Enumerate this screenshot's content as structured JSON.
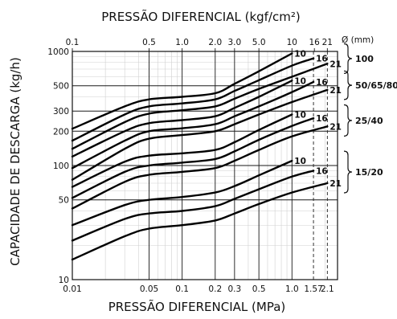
{
  "chart_data": {
    "type": "line",
    "title": "PRESSÃO DIFERENCIAL (kgf/cm²)",
    "xlabel": "PRESSÃO DIFERENCIAL (MPa)",
    "ylabel": "CAPACIDADE DE DESCARGA (kg/h)",
    "x_scale": "log",
    "y_scale": "log",
    "xlim": [
      0.01,
      2.6
    ],
    "ylim": [
      10,
      1000
    ],
    "grid": true,
    "x_ticks": [
      {
        "value": 0.01,
        "label": "0.01"
      },
      {
        "value": 0.05,
        "label": "0.05"
      },
      {
        "value": 0.1,
        "label": "0.1"
      },
      {
        "value": 0.2,
        "label": "0.2"
      },
      {
        "value": 0.3,
        "label": "0.3"
      },
      {
        "value": 0.5,
        "label": "0.5"
      },
      {
        "value": 1.0,
        "label": "1.0"
      },
      {
        "value": 1.57,
        "label": "1.57"
      },
      {
        "value": 2.1,
        "label": "2.1"
      }
    ],
    "x_top_ticks": [
      {
        "value": 0.1,
        "label": "0.1"
      },
      {
        "value": 0.5,
        "label": "0.5"
      },
      {
        "value": 1.0,
        "label": "1.0"
      },
      {
        "value": 2.0,
        "label": "2.0"
      },
      {
        "value": 3.0,
        "label": "3.0"
      },
      {
        "value": 5.0,
        "label": "5.0"
      },
      {
        "value": 10,
        "label": "10"
      },
      {
        "value": 16,
        "label": "16"
      },
      {
        "value": 21,
        "label": "21"
      }
    ],
    "x_top_unit_label": "Ø (mm)",
    "y_ticks": [
      {
        "value": 10,
        "label": "10"
      },
      {
        "value": 50,
        "label": "50"
      },
      {
        "value": 100,
        "label": "100"
      },
      {
        "value": 200,
        "label": "200"
      },
      {
        "value": 300,
        "label": "300"
      },
      {
        "value": 500,
        "label": "500"
      },
      {
        "value": 1000,
        "label": "1000"
      }
    ],
    "dashed_verticals": [
      1.57,
      2.1
    ],
    "series": [
      {
        "group": "100",
        "pressure_label": "10",
        "x": [
          0.01,
          0.03,
          0.05,
          0.1,
          0.2,
          0.3,
          0.5,
          1.0
        ],
        "y": [
          210,
          330,
          380,
          400,
          430,
          520,
          670,
          960
        ]
      },
      {
        "group": "100",
        "pressure_label": "16",
        "x": [
          0.01,
          0.03,
          0.05,
          0.1,
          0.2,
          0.3,
          0.5,
          1.0,
          1.57
        ],
        "y": [
          165,
          280,
          330,
          350,
          380,
          450,
          560,
          750,
          870
        ]
      },
      {
        "group": "100",
        "pressure_label": "21",
        "x": [
          0.01,
          0.03,
          0.05,
          0.1,
          0.2,
          0.3,
          0.5,
          1.0,
          2.1
        ],
        "y": [
          140,
          240,
          285,
          305,
          330,
          385,
          470,
          600,
          780
        ]
      },
      {
        "group": "50/65/80",
        "pressure_label": "10",
        "x": [
          0.01,
          0.03,
          0.05,
          0.1,
          0.2,
          0.3,
          0.5,
          1.0
        ],
        "y": [
          120,
          200,
          235,
          250,
          270,
          320,
          400,
          555
        ]
      },
      {
        "group": "50/65/80",
        "pressure_label": "16",
        "x": [
          0.01,
          0.03,
          0.05,
          0.1,
          0.2,
          0.3,
          0.5,
          1.0,
          1.57
        ],
        "y": [
          95,
          165,
          200,
          212,
          230,
          270,
          330,
          440,
          540
        ]
      },
      {
        "group": "50/65/80",
        "pressure_label": "21",
        "x": [
          0.01,
          0.03,
          0.05,
          0.1,
          0.2,
          0.3,
          0.5,
          1.0,
          2.1
        ],
        "y": [
          75,
          140,
          172,
          185,
          200,
          230,
          280,
          360,
          460
        ]
      },
      {
        "group": "25/40",
        "pressure_label": "10",
        "x": [
          0.01,
          0.03,
          0.05,
          0.1,
          0.2,
          0.3,
          0.5,
          1.0
        ],
        "y": [
          65,
          108,
          122,
          128,
          137,
          160,
          205,
          280
        ]
      },
      {
        "group": "25/40",
        "pressure_label": "16",
        "x": [
          0.01,
          0.03,
          0.05,
          0.1,
          0.2,
          0.3,
          0.5,
          1.0,
          1.57
        ],
        "y": [
          52,
          88,
          100,
          106,
          114,
          133,
          168,
          222,
          260
        ]
      },
      {
        "group": "25/40",
        "pressure_label": "21",
        "x": [
          0.01,
          0.03,
          0.05,
          0.1,
          0.2,
          0.3,
          0.5,
          1.0,
          2.1
        ],
        "y": [
          42,
          72,
          83,
          88,
          95,
          110,
          137,
          180,
          220
        ]
      },
      {
        "group": "15/20",
        "pressure_label": "10",
        "x": [
          0.01,
          0.03,
          0.05,
          0.1,
          0.2,
          0.3,
          0.5,
          1.0
        ],
        "y": [
          30,
          45,
          50,
          53,
          58,
          66,
          82,
          110
        ]
      },
      {
        "group": "15/20",
        "pressure_label": "16",
        "x": [
          0.01,
          0.03,
          0.05,
          0.1,
          0.2,
          0.3,
          0.5,
          1.0,
          1.57
        ],
        "y": [
          22,
          34,
          38,
          40,
          44,
          51,
          62,
          80,
          90
        ]
      },
      {
        "group": "15/20",
        "pressure_label": "21",
        "x": [
          0.01,
          0.03,
          0.05,
          0.1,
          0.2,
          0.3,
          0.5,
          1.0,
          2.1
        ],
        "y": [
          15,
          24,
          28,
          30,
          33,
          38,
          46,
          58,
          70
        ]
      }
    ],
    "groups": [
      "100",
      "50/65/80",
      "25/40",
      "15/20"
    ]
  }
}
